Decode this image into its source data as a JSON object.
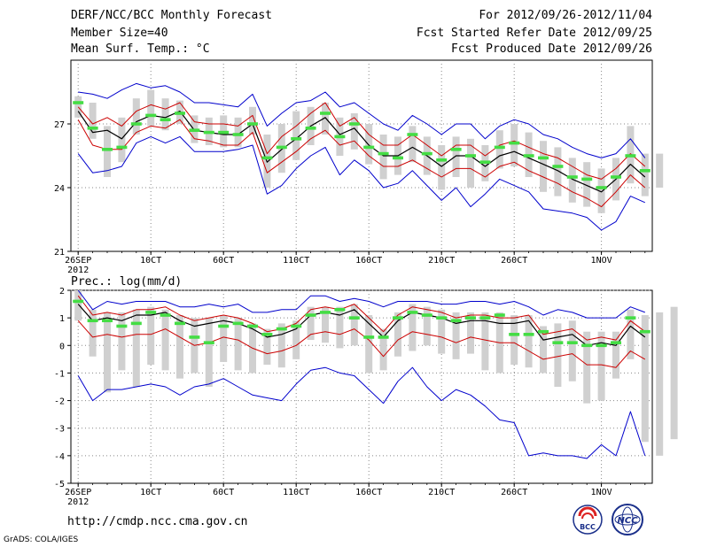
{
  "header": {
    "title": "DERF/NCC/BCC Monthly Forecast",
    "member_size": "Member Size=40",
    "panel1_variable": "Mean Surf. Temp.: °C",
    "period": "For 2012/09/26-2012/11/04",
    "fcst_started": "Fcst Started Refer Date 2012/09/25",
    "fcst_produced": "Fcst Produced Date 2012/09/26"
  },
  "footer": {
    "url": "http://cmdp.ncc.cma.gov.cn",
    "credit": "GrADS: COLA/IGES"
  },
  "logos": {
    "bcc": "BCC",
    "ncc": "NCC"
  },
  "colors": {
    "mean": "#000000",
    "spread": "#cc0000",
    "extreme": "#0000cc",
    "box": "#d0d0d0",
    "obs": "#44dd44",
    "grid": "#888888"
  },
  "chart_data": [
    {
      "type": "line",
      "title": "Mean Surf. Temp.: °C",
      "x_tick_labels": [
        "26SEP",
        "10CT",
        "60CT",
        "110CT",
        "160CT",
        "210CT",
        "260CT",
        "1NOV"
      ],
      "x_tick_days": [
        1,
        6,
        11,
        16,
        21,
        26,
        31,
        37
      ],
      "x_sublabel": "2012",
      "ylim": [
        21,
        30
      ],
      "y_ticks": [
        21,
        24,
        27
      ],
      "days": 40,
      "series": [
        {
          "name": "ensemble mean",
          "values": [
            27.6,
            26.6,
            26.7,
            26.3,
            27.1,
            27.4,
            27.3,
            27.6,
            26.7,
            26.6,
            26.5,
            26.5,
            27.0,
            25.2,
            25.8,
            26.3,
            26.9,
            27.3,
            26.5,
            26.8,
            26.0,
            25.5,
            25.5,
            25.9,
            25.5,
            25.0,
            25.5,
            25.5,
            25.0,
            25.5,
            25.7,
            25.4,
            25.1,
            24.8,
            24.4,
            24.1,
            23.8,
            24.4,
            25.1,
            24.5,
            24.5
          ]
        },
        {
          "name": "upper spread",
          "values": [
            27.8,
            27.0,
            27.3,
            26.9,
            27.6,
            27.9,
            27.7,
            28.0,
            27.1,
            27.0,
            27.0,
            26.9,
            27.4,
            25.6,
            26.4,
            26.9,
            27.5,
            28.0,
            26.9,
            27.3,
            26.5,
            26.0,
            26.0,
            26.5,
            26.0,
            25.5,
            26.0,
            26.0,
            25.5,
            26.0,
            26.2,
            25.9,
            25.6,
            25.4,
            25.0,
            24.6,
            24.4,
            24.9,
            25.6,
            25.0,
            25.0
          ]
        },
        {
          "name": "lower spread",
          "values": [
            27.2,
            26.0,
            25.8,
            25.8,
            26.6,
            26.9,
            26.8,
            27.2,
            26.3,
            26.2,
            26.0,
            26.0,
            26.6,
            24.7,
            25.2,
            25.7,
            26.3,
            26.7,
            26.0,
            26.2,
            25.5,
            25.0,
            25.0,
            25.3,
            24.9,
            24.5,
            24.9,
            24.9,
            24.5,
            25.0,
            25.2,
            24.8,
            24.5,
            24.2,
            23.8,
            23.5,
            23.1,
            23.8,
            24.6,
            24.0,
            24.0
          ]
        },
        {
          "name": "max",
          "values": [
            28.5,
            28.4,
            28.2,
            28.6,
            28.9,
            28.7,
            28.8,
            28.5,
            28.0,
            28.0,
            27.9,
            27.8,
            28.4,
            26.9,
            27.5,
            28.0,
            28.1,
            28.5,
            27.8,
            28.0,
            27.5,
            27.0,
            26.7,
            27.4,
            27.0,
            26.5,
            27.0,
            27.0,
            26.3,
            26.9,
            27.2,
            27.0,
            26.5,
            26.3,
            25.9,
            25.6,
            25.4,
            25.6,
            26.3,
            25.4,
            25.5
          ]
        },
        {
          "name": "min",
          "values": [
            25.6,
            24.7,
            24.8,
            25.0,
            26.1,
            26.4,
            26.1,
            26.4,
            25.7,
            25.7,
            25.7,
            25.8,
            26.0,
            23.7,
            24.1,
            24.9,
            25.5,
            25.9,
            24.6,
            25.3,
            24.8,
            24.0,
            24.2,
            24.8,
            24.1,
            23.4,
            24.0,
            23.1,
            23.7,
            24.4,
            24.1,
            23.8,
            23.0,
            22.9,
            22.8,
            22.6,
            22.0,
            22.4,
            23.6,
            23.3,
            23.8
          ]
        },
        {
          "name": "observed",
          "values": [
            28.0,
            26.8,
            25.8,
            25.9,
            27.0,
            27.4,
            27.2,
            27.5,
            26.7,
            26.6,
            26.6,
            26.5,
            27.0,
            25.4,
            25.9,
            26.3,
            26.8,
            27.5,
            26.4,
            27.0,
            25.9,
            25.6,
            25.4,
            26.5,
            25.6,
            25.3,
            25.8,
            25.5,
            25.2,
            25.9,
            26.1,
            25.5,
            25.4,
            25.0,
            24.5,
            24.4,
            24.0,
            24.5,
            25.5,
            24.8,
            24.8
          ]
        }
      ],
      "box_ranges": [
        [
          27.3,
          28.3
        ],
        [
          26.3,
          28.0
        ],
        [
          24.5,
          26.9
        ],
        [
          25.2,
          27.3
        ],
        [
          26.5,
          28.2
        ],
        [
          26.9,
          28.6
        ],
        [
          26.7,
          28.2
        ],
        [
          27.0,
          28.1
        ],
        [
          26.1,
          27.4
        ],
        [
          26.0,
          27.3
        ],
        [
          25.9,
          27.4
        ],
        [
          25.9,
          27.3
        ],
        [
          26.5,
          27.8
        ],
        [
          24.0,
          26.5
        ],
        [
          24.7,
          27.0
        ],
        [
          25.3,
          27.6
        ],
        [
          26.0,
          27.8
        ],
        [
          26.5,
          28.0
        ],
        [
          25.5,
          27.3
        ],
        [
          25.8,
          27.5
        ],
        [
          25.1,
          27.0
        ],
        [
          24.4,
          26.5
        ],
        [
          24.6,
          26.4
        ],
        [
          25.2,
          26.9
        ],
        [
          24.6,
          26.4
        ],
        [
          23.9,
          26.0
        ],
        [
          24.5,
          26.4
        ],
        [
          24.0,
          26.3
        ],
        [
          24.3,
          26.0
        ],
        [
          24.9,
          26.7
        ],
        [
          25.0,
          27.0
        ],
        [
          24.5,
          26.6
        ],
        [
          23.8,
          26.2
        ],
        [
          23.6,
          25.9
        ],
        [
          23.3,
          25.4
        ],
        [
          23.1,
          25.2
        ],
        [
          22.8,
          24.9
        ],
        [
          23.4,
          25.4
        ],
        [
          24.2,
          26.9
        ],
        [
          23.6,
          25.6
        ],
        [
          24.0,
          25.6
        ]
      ]
    },
    {
      "type": "line",
      "title": "Prec.: log(mm/d)",
      "x_tick_labels": [
        "26SEP",
        "10CT",
        "60CT",
        "110CT",
        "160CT",
        "210CT",
        "260CT",
        "1NOV"
      ],
      "x_tick_days": [
        1,
        6,
        11,
        16,
        21,
        26,
        31,
        37
      ],
      "x_sublabel": "2012",
      "ylim": [
        -5,
        2
      ],
      "y_ticks": [
        -5,
        -4,
        -3,
        -2,
        -1,
        0,
        1,
        2
      ],
      "days": 40,
      "series": [
        {
          "name": "ensemble mean",
          "values": [
            1.5,
            0.9,
            1.0,
            0.9,
            1.1,
            1.1,
            1.2,
            0.9,
            0.7,
            0.8,
            0.9,
            0.8,
            0.6,
            0.3,
            0.4,
            0.6,
            1.1,
            1.2,
            1.1,
            1.3,
            0.8,
            0.3,
            0.9,
            1.2,
            1.1,
            1.0,
            0.8,
            0.9,
            0.9,
            0.8,
            0.8,
            0.9,
            0.2,
            0.3,
            0.4,
            0.0,
            0.1,
            0.0,
            0.7,
            0.3,
            0.1,
            0.6
          ]
        },
        {
          "name": "upper spread",
          "values": [
            1.8,
            1.1,
            1.2,
            1.1,
            1.3,
            1.3,
            1.4,
            1.1,
            0.9,
            1.0,
            1.1,
            1.0,
            0.8,
            0.5,
            0.6,
            0.8,
            1.3,
            1.4,
            1.3,
            1.5,
            1.0,
            0.5,
            1.1,
            1.4,
            1.3,
            1.2,
            1.0,
            1.1,
            1.1,
            1.0,
            1.0,
            1.1,
            0.4,
            0.5,
            0.6,
            0.2,
            0.3,
            0.2,
            0.9,
            0.5,
            0.3,
            0.8
          ]
        },
        {
          "name": "lower spread",
          "values": [
            0.9,
            0.3,
            0.4,
            0.3,
            0.4,
            0.4,
            0.6,
            0.3,
            0.0,
            0.1,
            0.3,
            0.2,
            -0.1,
            -0.3,
            -0.2,
            0.0,
            0.4,
            0.5,
            0.4,
            0.6,
            0.2,
            -0.4,
            0.2,
            0.5,
            0.4,
            0.3,
            0.1,
            0.3,
            0.2,
            0.1,
            0.1,
            -0.2,
            -0.5,
            -0.4,
            -0.3,
            -0.7,
            -0.7,
            -0.8,
            -0.2,
            -0.5,
            -0.8,
            -0.2
          ]
        },
        {
          "name": "max",
          "values": [
            2.0,
            1.3,
            1.6,
            1.5,
            1.6,
            1.6,
            1.6,
            1.4,
            1.4,
            1.5,
            1.4,
            1.5,
            1.2,
            1.2,
            1.3,
            1.3,
            1.8,
            1.8,
            1.6,
            1.7,
            1.6,
            1.4,
            1.6,
            1.6,
            1.6,
            1.5,
            1.5,
            1.6,
            1.6,
            1.5,
            1.6,
            1.4,
            1.1,
            1.3,
            1.2,
            1.0,
            1.0,
            1.0,
            1.4,
            1.2,
            1.2,
            1.3
          ]
        },
        {
          "name": "min",
          "values": [
            -1.1,
            -2.0,
            -1.6,
            -1.6,
            -1.5,
            -1.4,
            -1.5,
            -1.8,
            -1.5,
            -1.4,
            -1.2,
            -1.5,
            -1.8,
            -1.9,
            -2.0,
            -1.4,
            -0.9,
            -0.8,
            -1.0,
            -1.1,
            -1.6,
            -2.1,
            -1.3,
            -0.8,
            -1.5,
            -2.0,
            -1.6,
            -1.8,
            -2.2,
            -2.7,
            -2.8,
            -4.0,
            -3.9,
            -4.0,
            -4.0,
            -4.1,
            -3.6,
            -4.0,
            -2.4,
            -4.0,
            -4.0,
            -3.0
          ]
        },
        {
          "name": "observed",
          "values": [
            1.6,
            0.9,
            0.9,
            0.7,
            0.8,
            1.2,
            1.1,
            0.8,
            0.3,
            0.1,
            0.7,
            0.8,
            0.7,
            0.4,
            0.6,
            0.7,
            1.1,
            1.2,
            1.3,
            1.0,
            0.3,
            0.3,
            1.0,
            1.2,
            1.1,
            1.0,
            0.9,
            1.0,
            1.0,
            1.1,
            0.4,
            0.4,
            0.5,
            0.1,
            0.1,
            0.0,
            0.0,
            0.1,
            1.0,
            0.5,
            0.7,
            0.8
          ]
        }
      ],
      "box_ranges": [
        [
          0.9,
          2.0
        ],
        [
          -0.4,
          1.3
        ],
        [
          -1.7,
          1.2
        ],
        [
          -0.9,
          1.2
        ],
        [
          -1.5,
          1.3
        ],
        [
          -0.7,
          1.4
        ],
        [
          -0.9,
          1.3
        ],
        [
          -1.2,
          1.1
        ],
        [
          -1.0,
          1.0
        ],
        [
          -1.5,
          1.0
        ],
        [
          -0.6,
          1.1
        ],
        [
          -0.9,
          1.0
        ],
        [
          -1.0,
          0.8
        ],
        [
          -0.7,
          0.6
        ],
        [
          -0.8,
          0.8
        ],
        [
          -0.5,
          0.9
        ],
        [
          0.2,
          1.4
        ],
        [
          0.1,
          1.4
        ],
        [
          -0.1,
          1.4
        ],
        [
          0.0,
          1.5
        ],
        [
          -1.0,
          1.1
        ],
        [
          -0.9,
          0.6
        ],
        [
          -0.4,
          1.2
        ],
        [
          -0.2,
          1.5
        ],
        [
          0.0,
          1.4
        ],
        [
          -0.3,
          1.3
        ],
        [
          -0.5,
          1.2
        ],
        [
          -0.3,
          1.2
        ],
        [
          -0.9,
          1.2
        ],
        [
          -1.0,
          1.2
        ],
        [
          -0.7,
          1.1
        ],
        [
          -0.8,
          1.1
        ],
        [
          -1.0,
          0.7
        ],
        [
          -1.5,
          0.8
        ],
        [
          -1.3,
          0.9
        ],
        [
          -2.1,
          0.5
        ],
        [
          -2.0,
          0.5
        ],
        [
          -1.2,
          0.5
        ],
        [
          -0.5,
          1.3
        ],
        [
          -3.5,
          1.1
        ],
        [
          -4.0,
          1.2
        ],
        [
          -3.4,
          1.4
        ]
      ]
    }
  ]
}
